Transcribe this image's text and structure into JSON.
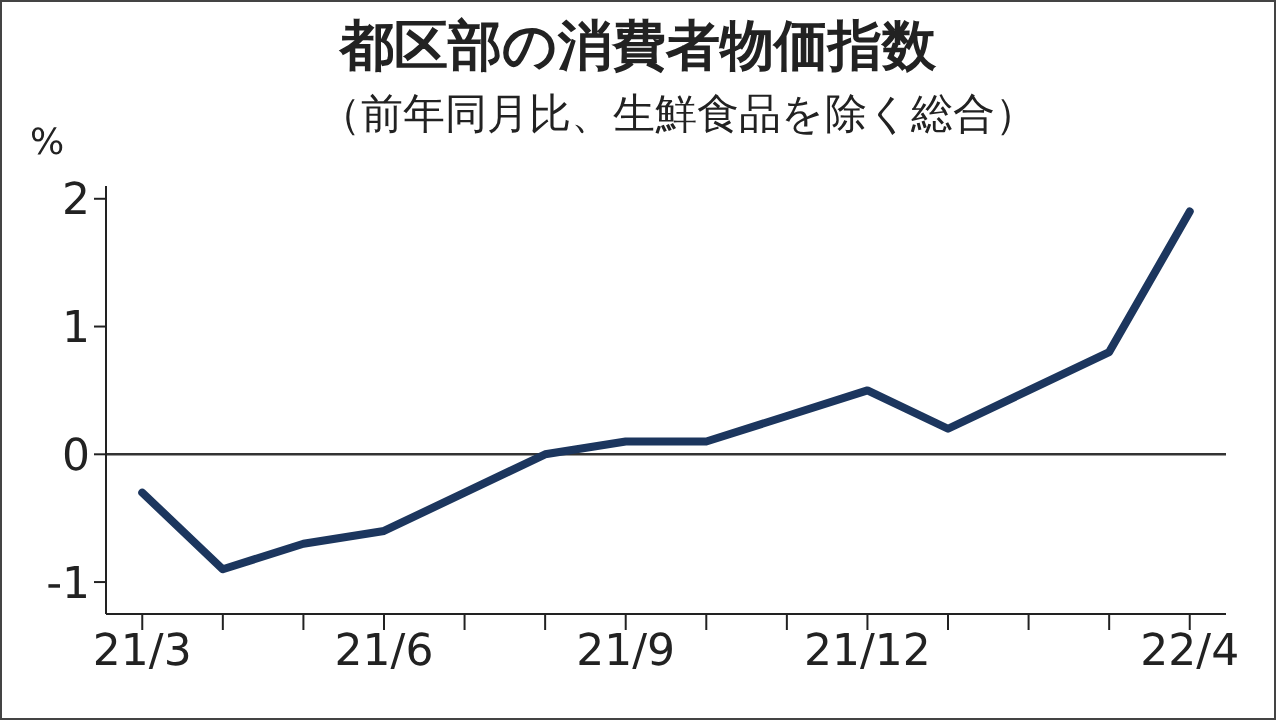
{
  "chart_data": {
    "type": "line",
    "title": "都区部の消費者物価指数",
    "subtitle": "（前年同月比、生鮮食品を除く総合）",
    "ylabel": "%",
    "categories": [
      "21/3",
      null,
      null,
      "21/6",
      null,
      null,
      "21/9",
      null,
      null,
      "21/12",
      null,
      null,
      null,
      "22/4"
    ],
    "series": [
      {
        "color": "#1c365e",
        "values": [
          -0.3,
          -0.9,
          -0.7,
          -0.6,
          -0.3,
          0.0,
          0.1,
          0.1,
          0.3,
          0.5,
          0.2,
          0.5,
          0.8,
          1.9
        ]
      }
    ],
    "ylim": [
      -1.25,
      2.1
    ],
    "yticks": [
      -1,
      0,
      1,
      2
    ],
    "ref_lines": [
      {
        "axis": "y",
        "value": 0,
        "color": "#333333"
      }
    ],
    "grid": false,
    "marker": "none",
    "line_style": "solid"
  }
}
